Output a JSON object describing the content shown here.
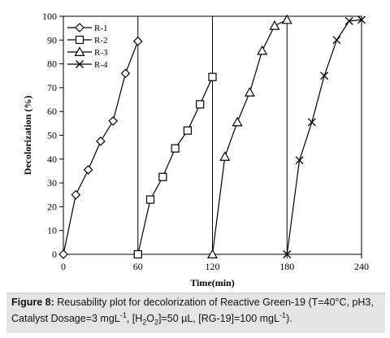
{
  "chart_data": {
    "type": "line",
    "title": "",
    "xlabel": "Time(min)",
    "ylabel": "Decolorization (%)",
    "xlim": [
      0,
      240
    ],
    "ylim": [
      0,
      100
    ],
    "x_ticks": [
      0,
      60,
      120,
      180,
      240
    ],
    "y_ticks": [
      0,
      10,
      20,
      30,
      40,
      50,
      60,
      70,
      80,
      90,
      100
    ],
    "grid": false,
    "legend_position": "top-left",
    "vertical_lines_x": [
      60,
      120,
      180
    ],
    "series": [
      {
        "name": "R-1",
        "marker": "diamond",
        "x": [
          0,
          10,
          20,
          30,
          40,
          50,
          60
        ],
        "y": [
          0,
          25,
          35.5,
          47.5,
          56,
          76,
          89.5
        ]
      },
      {
        "name": "R-2",
        "marker": "square",
        "x": [
          60,
          70,
          80,
          90,
          100,
          110,
          120
        ],
        "y": [
          0,
          23,
          32.5,
          44.5,
          52,
          63,
          74.5
        ]
      },
      {
        "name": "R-3",
        "marker": "triangle",
        "x": [
          120,
          130,
          140,
          150,
          160,
          170,
          180
        ],
        "y": [
          0,
          41,
          55.5,
          68,
          85.5,
          96,
          98.5
        ]
      },
      {
        "name": "R-4",
        "marker": "x",
        "x": [
          180,
          190,
          200,
          210,
          220,
          230,
          240
        ],
        "y": [
          0,
          39.5,
          55.5,
          75,
          90,
          98,
          98.5
        ]
      }
    ]
  },
  "caption": {
    "label": "Figure 8:",
    "line1": " Reusability plot for decolorization of Reactive Green-19 (T=40°C, pH3,",
    "line2_a": "Catalyst Dosage=3 mgL",
    "line2_a_sup": "-1",
    "line2_b": ", [H",
    "line2_b_sub1": "2",
    "line2_c": "O",
    "line2_c_sub2": "2",
    "line2_d": "]=50 µL, [RG-19]=100 mgL",
    "line2_d_sup": "-1",
    "line2_e": ")."
  }
}
